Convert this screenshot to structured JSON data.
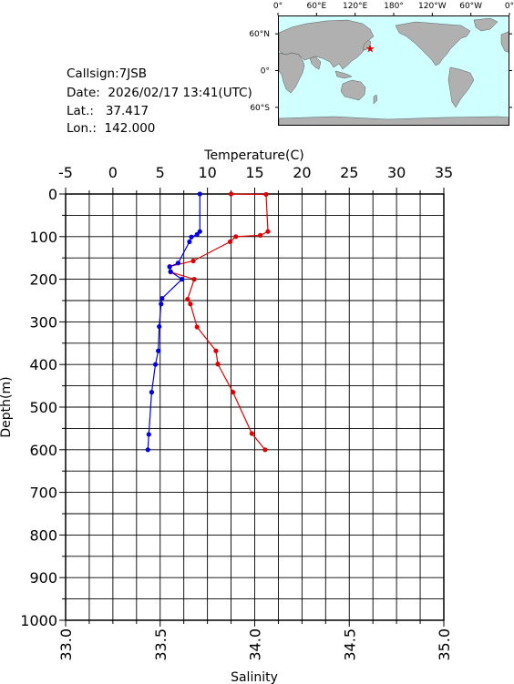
{
  "info": {
    "callsign_label": "Callsign:",
    "callsign": "7JSB",
    "date_label": "Date:",
    "date": "2026/02/17 13:41(UTC)",
    "lat_label": "Lat.:",
    "lat": "37.417",
    "lon_label": "Lon.:",
    "lon": "142.000"
  },
  "map": {
    "top_labels": [
      "0°",
      "60°E",
      "120°E",
      "180°",
      "120°W",
      "60°W",
      "0°"
    ],
    "lat_labels": [
      "60°N",
      "0°",
      "60°S"
    ],
    "marker": {
      "lat": 37.417,
      "lon": 142.0
    },
    "colors": {
      "ocean": "#cfffff",
      "land": "#b0b0b0",
      "marker": "#e00000"
    }
  },
  "chart_data": {
    "type": "line",
    "temperature_axis": {
      "label": "Temperature(C)",
      "range": [
        -5,
        35
      ],
      "ticks": [
        "-5",
        "0",
        "5",
        "10",
        "15",
        "20",
        "25",
        "30",
        "35"
      ]
    },
    "salinity_axis": {
      "label": "Salinity",
      "range": [
        33.0,
        35.0
      ],
      "ticks": [
        "33.0",
        "33.5",
        "34.0",
        "34.5",
        "35.0"
      ]
    },
    "depth_axis": {
      "label": "Depth(m)",
      "range": [
        0,
        1000
      ],
      "ticks": [
        "0",
        "100",
        "200",
        "300",
        "400",
        "500",
        "600",
        "700",
        "800",
        "900",
        "1000"
      ]
    },
    "grid": true,
    "series": [
      {
        "axis": "temperature",
        "color": "#e00000",
        "points": [
          [
            12.5,
            0
          ],
          [
            16.2,
            1
          ],
          [
            16.4,
            88
          ],
          [
            15.6,
            97
          ],
          [
            13.0,
            100
          ],
          [
            12.4,
            112
          ],
          [
            8.5,
            157
          ],
          [
            6.0,
            170
          ],
          [
            6.1,
            183
          ],
          [
            8.6,
            200
          ],
          [
            7.9,
            247
          ],
          [
            8.2,
            258
          ],
          [
            8.9,
            312
          ],
          [
            10.9,
            368
          ],
          [
            11.1,
            399
          ],
          [
            12.7,
            465
          ],
          [
            14.7,
            562
          ],
          [
            16.1,
            600
          ]
        ]
      },
      {
        "axis": "salinity",
        "color": "#0000e0",
        "points": [
          [
            33.71,
            0
          ],
          [
            33.71,
            88
          ],
          [
            33.695,
            95
          ],
          [
            33.665,
            101
          ],
          [
            33.655,
            112
          ],
          [
            33.595,
            162
          ],
          [
            33.55,
            171
          ],
          [
            33.555,
            182
          ],
          [
            33.615,
            200
          ],
          [
            33.51,
            245
          ],
          [
            33.505,
            258
          ],
          [
            33.495,
            311
          ],
          [
            33.49,
            368
          ],
          [
            33.475,
            400
          ],
          [
            33.455,
            465
          ],
          [
            33.44,
            564
          ],
          [
            33.435,
            600
          ]
        ]
      }
    ]
  }
}
